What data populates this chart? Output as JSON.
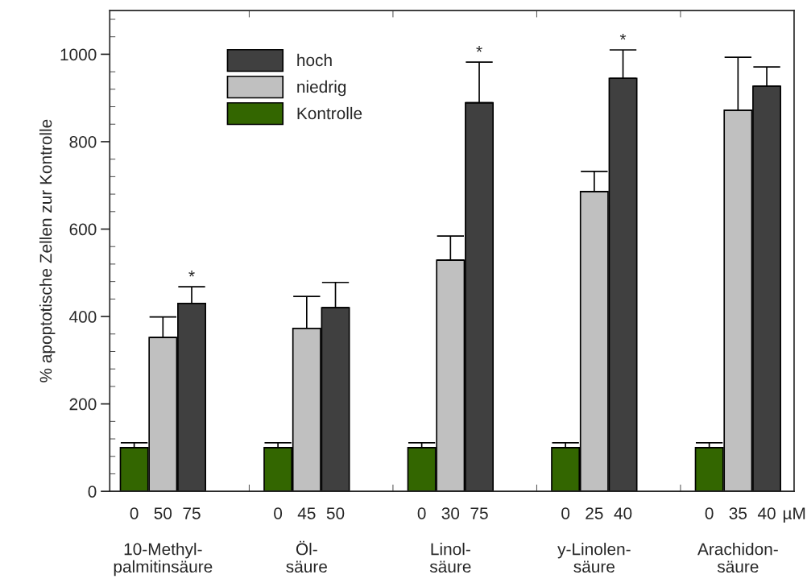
{
  "chart_data": {
    "type": "bar",
    "ylabel": "% apoptotische Zellen zur Kontrolle",
    "categories": [
      "0",
      "50",
      "75",
      null,
      null,
      "0",
      "45",
      "50",
      null,
      null,
      "0",
      "30",
      "75",
      null,
      null,
      "0",
      "25",
      "40",
      null,
      null,
      "0",
      "35",
      "40"
    ],
    "series": [
      {
        "name": "hoch",
        "color": "#404040",
        "values": [
          null,
          null,
          430,
          null,
          null,
          null,
          null,
          420,
          null,
          null,
          null,
          null,
          889,
          null,
          null,
          null,
          null,
          945,
          null,
          null,
          null,
          null,
          927
        ],
        "errors": [
          null,
          null,
          [
            430,
            468
          ],
          null,
          null,
          null,
          null,
          [
            420,
            478
          ],
          null,
          null,
          null,
          null,
          [
            889,
            982
          ],
          null,
          null,
          null,
          null,
          [
            945,
            1010
          ],
          null,
          null,
          null,
          null,
          [
            927,
            971
          ]
        ],
        "value_labels": [
          null,
          null,
          "*",
          null,
          null,
          null,
          null,
          null,
          null,
          null,
          null,
          null,
          "*",
          null,
          null,
          null,
          null,
          "*",
          null,
          null,
          null,
          null,
          null
        ]
      },
      {
        "name": "niedrig",
        "color": "#c0c0c0",
        "values": [
          null,
          352,
          null,
          null,
          null,
          null,
          373,
          null,
          null,
          null,
          null,
          529,
          null,
          null,
          null,
          null,
          686,
          null,
          null,
          null,
          null,
          872,
          null
        ],
        "errors": [
          null,
          [
            352,
            399
          ],
          null,
          null,
          null,
          null,
          [
            373,
            446
          ],
          null,
          null,
          null,
          null,
          [
            529,
            584
          ],
          null,
          null,
          null,
          null,
          [
            686,
            732
          ],
          null,
          null,
          null,
          null,
          [
            872,
            993
          ],
          null
        ]
      },
      {
        "name": "Kontrolle",
        "color": "#336600",
        "values": [
          100,
          null,
          null,
          null,
          null,
          100,
          null,
          null,
          null,
          null,
          100,
          null,
          null,
          null,
          null,
          100,
          null,
          null,
          null,
          null,
          100,
          null,
          null
        ],
        "errors": [
          [
            100,
            111
          ],
          null,
          null,
          null,
          null,
          [
            100,
            111
          ],
          null,
          null,
          null,
          null,
          [
            100,
            111
          ],
          null,
          null,
          null,
          null,
          [
            100,
            111
          ],
          null,
          null,
          null,
          null,
          [
            100,
            111
          ],
          null,
          null
        ]
      }
    ],
    "ylim": [
      0,
      1100
    ],
    "yticks": [
      0,
      200,
      400,
      600,
      800,
      1000
    ],
    "legend": "top left",
    "annotations": [
      "10-Methyl-\npalmitinsäure",
      "Öl-\nsäure",
      "Linol-\nsäure",
      "y-Linolen-\nsäure",
      "Arachidon-\nsäure",
      "µM"
    ]
  }
}
